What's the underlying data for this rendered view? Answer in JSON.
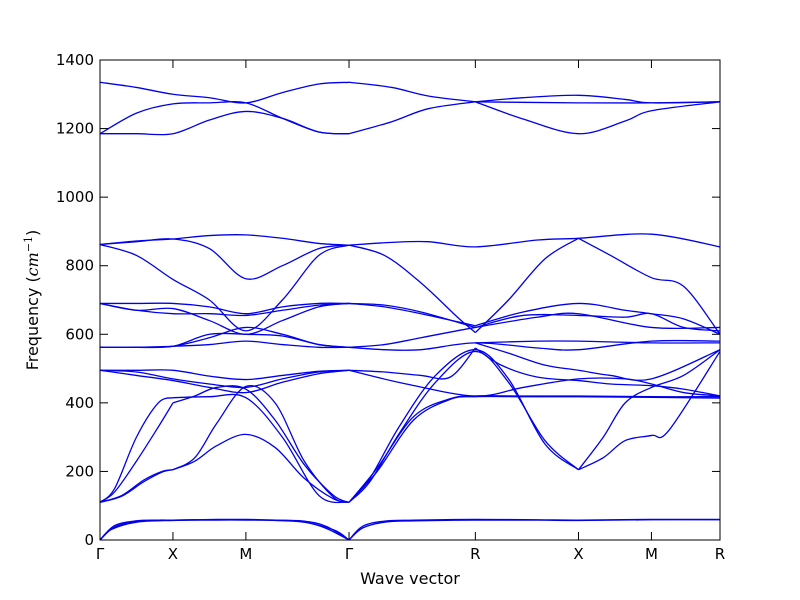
{
  "chart_data": {
    "type": "line",
    "title": "",
    "xlabel": "Wave vector",
    "ylabel": "Frequency (cm⁻¹)",
    "ylabel_main": "Frequency (",
    "ylabel_unit": "cm",
    "ylabel_exp": "−1",
    "ylabel_close": ")",
    "ylim": [
      0,
      1400
    ],
    "yticks": [
      0,
      200,
      400,
      600,
      800,
      1000,
      1200,
      1400
    ],
    "xlim": [
      0,
      8.5
    ],
    "xticks": [
      {
        "label": "Γ",
        "x": 0
      },
      {
        "label": "X",
        "x": 1
      },
      {
        "label": "M",
        "x": 2
      },
      {
        "label": "Γ",
        "x": 3.414
      },
      {
        "label": "R",
        "x": 5.146
      },
      {
        "label": "X",
        "x": 6.56
      },
      {
        "label": "M",
        "x": 7.56
      },
      {
        "label": "R",
        "x": 8.5
      }
    ],
    "grid": false,
    "line_color": "#0000ee",
    "series": [
      {
        "x": [
          0,
          0.2,
          0.5,
          0.8,
          1,
          1.3,
          1.6,
          2,
          2.4,
          2.8,
          3.1,
          3.414
        ],
        "values": [
          0,
          42,
          56,
          58,
          58,
          59,
          60,
          60,
          58,
          55,
          40,
          0
        ]
      },
      {
        "x": [
          0,
          0.2,
          0.5,
          0.8,
          1,
          1.3,
          1.6,
          2,
          2.4,
          2.8,
          3.1,
          3.414
        ],
        "values": [
          0,
          38,
          54,
          57,
          58,
          59,
          59,
          59,
          57,
          52,
          34,
          0
        ]
      },
      {
        "x": [
          0,
          0.15,
          0.5,
          1,
          1.5,
          2,
          2.7,
          3.2,
          3.414
        ],
        "values": [
          0,
          30,
          52,
          57,
          58,
          58,
          55,
          30,
          0
        ]
      },
      {
        "x": [
          3.414,
          3.6,
          3.9,
          4.3,
          5.146,
          6,
          6.56,
          7.56,
          8.5
        ],
        "values": [
          0,
          40,
          55,
          58,
          60,
          59,
          58,
          60,
          60
        ]
      },
      {
        "x": [
          3.414,
          3.6,
          3.9,
          4.3,
          5.146,
          6,
          6.56,
          7.56,
          8.5
        ],
        "values": [
          0,
          35,
          52,
          56,
          58,
          58,
          57,
          59,
          59
        ]
      },
      {
        "x": [
          0,
          0.2,
          0.5,
          0.8,
          1
        ],
        "values": [
          110,
          150,
          300,
          400,
          415
        ]
      },
      {
        "x": [
          1,
          1.5,
          2,
          2.5,
          3,
          3.414
        ],
        "values": [
          415,
          418,
          415,
          300,
          130,
          110
        ]
      },
      {
        "x": [
          0,
          0.3,
          0.6,
          0.85,
          1
        ],
        "values": [
          110,
          130,
          175,
          200,
          205
        ]
      },
      {
        "x": [
          1,
          1.3,
          1.6,
          2,
          2.4,
          2.8,
          3.2,
          3.414
        ],
        "values": [
          205,
          240,
          340,
          448,
          400,
          230,
          125,
          110
        ]
      },
      {
        "x": [
          0,
          0.3,
          0.6,
          0.85,
          1
        ],
        "values": [
          110,
          128,
          170,
          198,
          205
        ]
      },
      {
        "x": [
          1,
          1.3,
          1.6,
          2,
          2.4,
          2.8,
          3.2,
          3.414
        ],
        "values": [
          205,
          230,
          275,
          308,
          270,
          180,
          120,
          110
        ]
      },
      {
        "x": [
          0,
          0.2,
          0.5,
          0.8,
          1
        ],
        "values": [
          110,
          140,
          230,
          330,
          400
        ]
      },
      {
        "x": [
          1,
          1.3,
          1.6,
          2,
          2.4,
          2.8,
          3.2,
          3.414
        ],
        "values": [
          400,
          420,
          445,
          440,
          350,
          220,
          130,
          110
        ]
      },
      {
        "x": [
          3.414,
          3.7,
          4.1,
          4.6,
          5.146,
          5.6,
          6.1,
          6.56
        ],
        "values": [
          110,
          180,
          330,
          480,
          555,
          470,
          280,
          205
        ]
      },
      {
        "x": [
          3.414,
          3.7,
          4.1,
          4.6,
          5.146,
          5.6,
          6.1,
          6.56
        ],
        "values": [
          110,
          170,
          310,
          460,
          550,
          460,
          290,
          205
        ]
      },
      {
        "x": [
          6.56,
          6.9,
          7.2,
          7.56,
          8,
          8.5
        ],
        "values": [
          205,
          300,
          400,
          445,
          480,
          555
        ]
      },
      {
        "x": [
          6.56,
          6.9,
          7.2,
          7.56,
          7.8,
          8.5
        ],
        "values": [
          205,
          240,
          290,
          305,
          320,
          550
        ]
      },
      {
        "x": [
          3.414,
          3.8,
          4.3,
          4.8,
          5.146,
          5.8,
          6.56,
          7.56,
          8.5
        ],
        "values": [
          110,
          200,
          350,
          410,
          418,
          418,
          418,
          416,
          414
        ]
      },
      {
        "x": [
          3.414,
          3.8,
          4.3,
          4.8,
          5.146,
          5.8,
          6.56,
          7.56,
          8.5
        ],
        "values": [
          110,
          210,
          360,
          412,
          420,
          420,
          420,
          418,
          418
        ]
      },
      {
        "x": [
          0,
          0.5,
          1,
          1.5,
          2,
          2.5,
          3,
          3.414
        ],
        "values": [
          495,
          490,
          470,
          455,
          445,
          470,
          490,
          495
        ]
      },
      {
        "x": [
          0,
          0.5,
          1,
          1.5,
          2,
          2.5,
          3,
          3.414
        ],
        "values": [
          495,
          495,
          495,
          478,
          468,
          480,
          492,
          495
        ]
      },
      {
        "x": [
          0,
          0.5,
          1,
          1.5,
          2,
          2.5,
          3,
          3.414
        ],
        "values": [
          495,
          480,
          465,
          445,
          430,
          460,
          485,
          495
        ]
      },
      {
        "x": [
          3.414,
          3.9,
          4.4,
          4.8,
          5.146
        ],
        "values": [
          495,
          490,
          480,
          475,
          560
        ]
      },
      {
        "x": [
          3.414,
          4.2,
          5.146,
          5.8,
          6.56,
          7.2,
          7.56,
          8,
          8.5
        ],
        "values": [
          495,
          455,
          420,
          445,
          470,
          470,
          455,
          430,
          420
        ]
      },
      {
        "x": [
          5.146,
          5.5,
          6,
          6.56,
          7,
          7.56,
          8,
          8.5
        ],
        "values": [
          560,
          510,
          475,
          465,
          455,
          450,
          440,
          420
        ]
      },
      {
        "x": [
          5.146,
          5.6,
          6.1,
          6.56,
          7,
          7.56,
          8.5
        ],
        "values": [
          575,
          545,
          510,
          495,
          480,
          470,
          555
        ]
      },
      {
        "x": [
          0,
          0.5,
          1,
          1.5,
          2,
          2.5,
          3,
          3.414
        ],
        "values": [
          562,
          562,
          565,
          570,
          580,
          570,
          562,
          562
        ]
      },
      {
        "x": [
          0,
          0.5,
          1,
          1.5,
          2,
          2.5,
          3,
          3.414
        ],
        "values": [
          562,
          562,
          565,
          590,
          620,
          600,
          570,
          562
        ]
      },
      {
        "x": [
          0,
          0.5,
          1,
          1.5,
          2,
          2.5,
          3,
          3.414
        ],
        "values": [
          562,
          562,
          565,
          600,
          600,
          595,
          570,
          562
        ]
      },
      {
        "x": [
          3.414,
          3.9,
          4.4,
          5.146,
          6,
          6.56,
          7.56,
          8.5
        ],
        "values": [
          562,
          555,
          555,
          575,
          560,
          555,
          580,
          580
        ]
      },
      {
        "x": [
          3.414,
          3.9,
          4.4,
          5.146,
          6,
          6.56,
          7.56,
          8.5
        ],
        "values": [
          562,
          570,
          590,
          620,
          650,
          660,
          620,
          620
        ]
      },
      {
        "x": [
          5.146,
          6,
          6.56,
          7.56,
          8.5
        ],
        "values": [
          575,
          580,
          580,
          575,
          575
        ]
      },
      {
        "x": [
          0,
          0.5,
          1,
          1.5,
          2,
          2.5,
          3,
          3.414
        ],
        "values": [
          690,
          690,
          690,
          680,
          660,
          680,
          690,
          690
        ]
      },
      {
        "x": [
          0,
          0.5,
          1,
          1.5,
          2,
          2.5,
          3,
          3.414
        ],
        "values": [
          690,
          670,
          660,
          660,
          655,
          670,
          685,
          690
        ]
      },
      {
        "x": [
          0,
          0.5,
          1,
          1.5,
          2,
          2.5,
          3,
          3.414
        ],
        "values": [
          690,
          670,
          675,
          640,
          600,
          640,
          680,
          690
        ]
      },
      {
        "x": [
          3.414,
          3.9,
          4.4,
          5.146
        ],
        "values": [
          690,
          680,
          660,
          625
        ]
      },
      {
        "x": [
          3.414,
          3.9,
          4.4,
          5.146
        ],
        "values": [
          690,
          685,
          665,
          620
        ]
      },
      {
        "x": [
          5.146,
          5.8,
          6.56,
          7.2,
          7.56,
          8,
          8.5
        ],
        "values": [
          625,
          665,
          690,
          670,
          660,
          645,
          600
        ]
      },
      {
        "x": [
          5.146,
          5.8,
          6.56,
          7.2,
          7.56,
          8,
          8.5
        ],
        "values": [
          620,
          655,
          655,
          650,
          660,
          620,
          610
        ]
      },
      {
        "x": [
          0,
          0.5,
          1,
          1.5,
          2,
          2.5,
          3,
          3.414
        ],
        "values": [
          862,
          872,
          878,
          888,
          890,
          880,
          865,
          860
        ]
      },
      {
        "x": [
          0,
          0.5,
          1,
          1.5,
          2,
          2.5,
          3,
          3.414
        ],
        "values": [
          862,
          870,
          878,
          850,
          762,
          800,
          850,
          860
        ]
      },
      {
        "x": [
          0,
          0.5,
          1,
          1.5,
          2,
          2.5,
          3,
          3.414
        ],
        "values": [
          862,
          830,
          760,
          700,
          610,
          700,
          830,
          860
        ]
      },
      {
        "x": [
          3.414,
          4,
          4.5,
          5.146,
          6,
          6.56,
          7.56,
          8.5
        ],
        "values": [
          860,
          868,
          870,
          855,
          875,
          880,
          892,
          855
        ]
      },
      {
        "x": [
          3.414,
          3.9,
          4.4,
          4.9,
          5.146
        ],
        "values": [
          860,
          830,
          750,
          650,
          605
        ]
      },
      {
        "x": [
          5.146,
          5.6,
          6.1,
          6.56
        ],
        "values": [
          605,
          700,
          820,
          880
        ]
      },
      {
        "x": [
          6.56,
          7,
          7.56,
          8,
          8.5
        ],
        "values": [
          880,
          830,
          765,
          740,
          600
        ]
      },
      {
        "x": [
          0,
          0.5,
          1,
          1.5,
          2,
          2.5,
          3,
          3.414
        ],
        "values": [
          1335,
          1320,
          1300,
          1290,
          1275,
          1305,
          1330,
          1335
        ]
      },
      {
        "x": [
          0,
          0.5,
          1,
          1.5,
          2,
          2.5,
          3,
          3.414
        ],
        "values": [
          1185,
          1245,
          1272,
          1275,
          1275,
          1230,
          1190,
          1185
        ]
      },
      {
        "x": [
          0,
          0.5,
          1,
          1.5,
          2,
          2.5,
          3,
          3.414
        ],
        "values": [
          1185,
          1185,
          1185,
          1225,
          1250,
          1230,
          1190,
          1185
        ]
      },
      {
        "x": [
          3.414,
          4,
          4.5,
          5.146
        ],
        "values": [
          1335,
          1320,
          1295,
          1278
        ]
      },
      {
        "x": [
          3.414,
          4,
          4.5,
          5.146
        ],
        "values": [
          1185,
          1220,
          1258,
          1278
        ]
      },
      {
        "x": [
          5.146,
          5.8,
          6.56,
          7.2,
          7.56,
          8.5
        ],
        "values": [
          1278,
          1290,
          1297,
          1285,
          1275,
          1278
        ]
      },
      {
        "x": [
          5.146,
          5.8,
          6.56,
          7.2,
          7.56,
          8.5
        ],
        "values": [
          1278,
          1228,
          1185,
          1222,
          1252,
          1278
        ]
      },
      {
        "x": [
          5.146,
          6.56,
          7.56,
          8.5
        ],
        "values": [
          1278,
          1275,
          1275,
          1278
        ]
      }
    ]
  }
}
